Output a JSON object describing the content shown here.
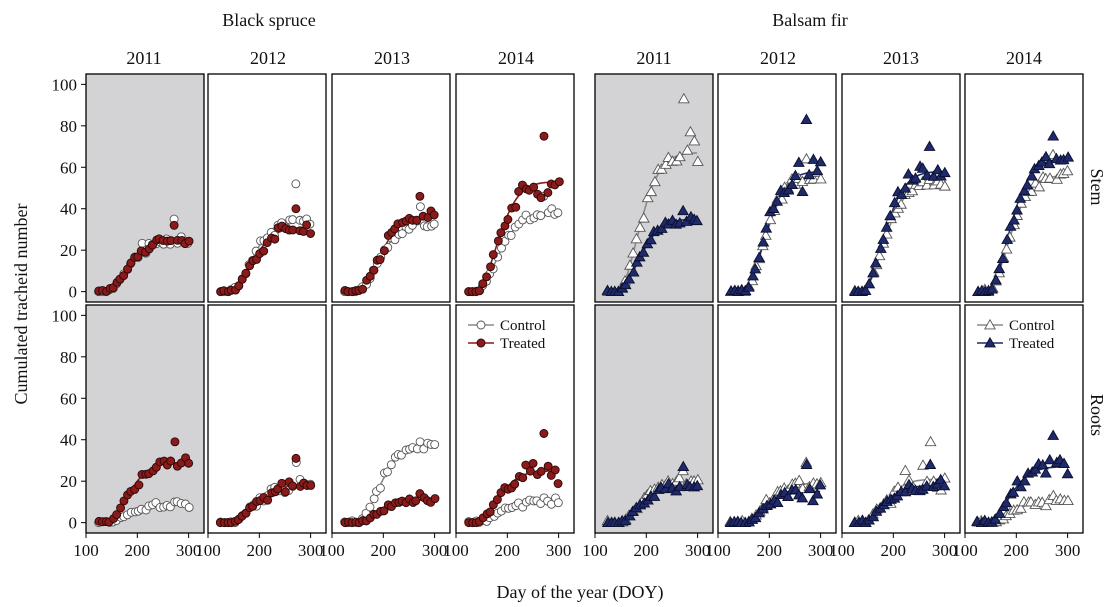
{
  "species_titles": [
    "Black spruce",
    "Balsam fir"
  ],
  "years": [
    "2011",
    "2012",
    "2013",
    "2014"
  ],
  "tissue_labels": [
    "Stem",
    "Roots"
  ],
  "y_axis_label": "Cumulated tracheid number",
  "x_axis_label": "Day of the year (DOY)",
  "legend": {
    "control": "Control",
    "treated": "Treated"
  },
  "colors": {
    "control_line": "#8a8a8a",
    "spruce_treated": "#8b1a1a",
    "fir_treated": "#1f2a6b",
    "shaded_panel": "#d3d3d5"
  },
  "chart_data": {
    "type": "scatter",
    "x_label": "Day of the year (DOY)",
    "y_label": "Cumulated tracheid number",
    "xlim": [
      100,
      330
    ],
    "ylim": [
      -5,
      105
    ],
    "x_ticks": [
      100,
      200,
      300
    ],
    "y_ticks": [
      0,
      20,
      40,
      60,
      80,
      100
    ],
    "shaded_year": "2011",
    "species": [
      "Black spruce",
      "Balsam fir"
    ],
    "tissues": [
      "Stem",
      "Roots"
    ],
    "years": [
      "2011",
      "2012",
      "2013",
      "2014"
    ],
    "treatments": [
      "Control",
      "Treated"
    ],
    "fitted_final_values": {
      "Black spruce": {
        "Stem": {
          "Control": [
            25,
            35,
            33,
            37
          ],
          "Treated": [
            25,
            31,
            36,
            53
          ]
        },
        "Roots": {
          "Control": [
            9,
            18,
            37,
            10
          ],
          "Treated": [
            29,
            18,
            11,
            25
          ]
        }
      },
      "Balsam fir": {
        "Stem": {
          "Control": [
            67,
            56,
            52,
            56
          ],
          "Treated": [
            35,
            58,
            58,
            64
          ]
        },
        "Roots": {
          "Control": [
            20,
            19,
            21,
            10
          ],
          "Treated": [
            18,
            15,
            18,
            27
          ]
        }
      }
    },
    "observed_maxima": {
      "Black spruce": {
        "Stem": {
          "Control": [
            35,
            52,
            41,
            46
          ],
          "Treated": [
            32,
            40,
            46,
            75
          ]
        },
        "Roots": {
          "Control": [
            10,
            29,
            39,
            12
          ],
          "Treated": [
            39,
            31,
            14,
            43
          ]
        }
      },
      "Balsam fir": {
        "Stem": {
          "Control": [
            93,
            64,
            54,
            66
          ],
          "Treated": [
            39,
            83,
            70,
            75
          ]
        },
        "Roots": {
          "Control": [
            25,
            29,
            39,
            13
          ],
          "Treated": [
            27,
            28,
            28,
            42
          ]
        }
      }
    }
  }
}
